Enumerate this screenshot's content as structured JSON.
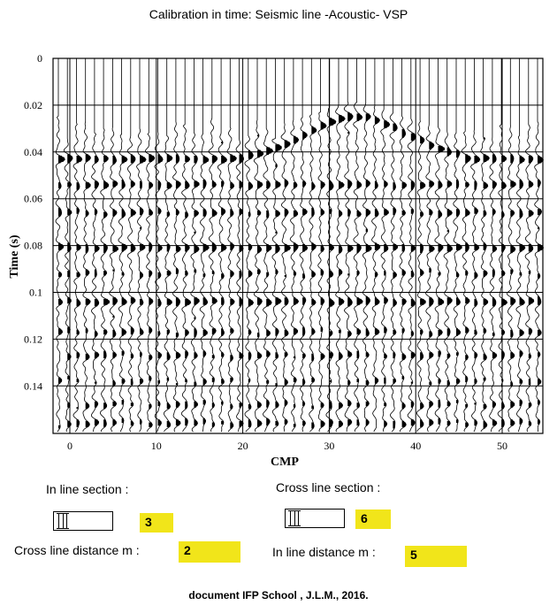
{
  "title": "Calibration in time:  Seismic line -Acoustic- VSP",
  "chart_data": {
    "type": "line",
    "xlabel": "CMP",
    "ylabel": "Time (s)",
    "x_ticks": [
      0,
      10,
      20,
      30,
      40,
      50
    ],
    "y_ticks": [
      "0",
      "0.02",
      "0.04",
      "0.06",
      "0.08",
      "0.1",
      "0.12",
      "0.14"
    ],
    "xlim": [
      0,
      54
    ],
    "ylim": [
      0,
      0.16
    ],
    "grid": true,
    "trace_count": 54
  },
  "controls": {
    "inline_section_label": "In line section :",
    "inline_section_value": "3",
    "crossline_section_label": "Cross line section :",
    "crossline_section_value": "6",
    "crossline_distance_label": "Cross line distance m :",
    "crossline_distance_value": "2",
    "inline_distance_label": "In line distance m :",
    "inline_distance_value": "5"
  },
  "footer": "document IFP School , J.L.M., 2016."
}
